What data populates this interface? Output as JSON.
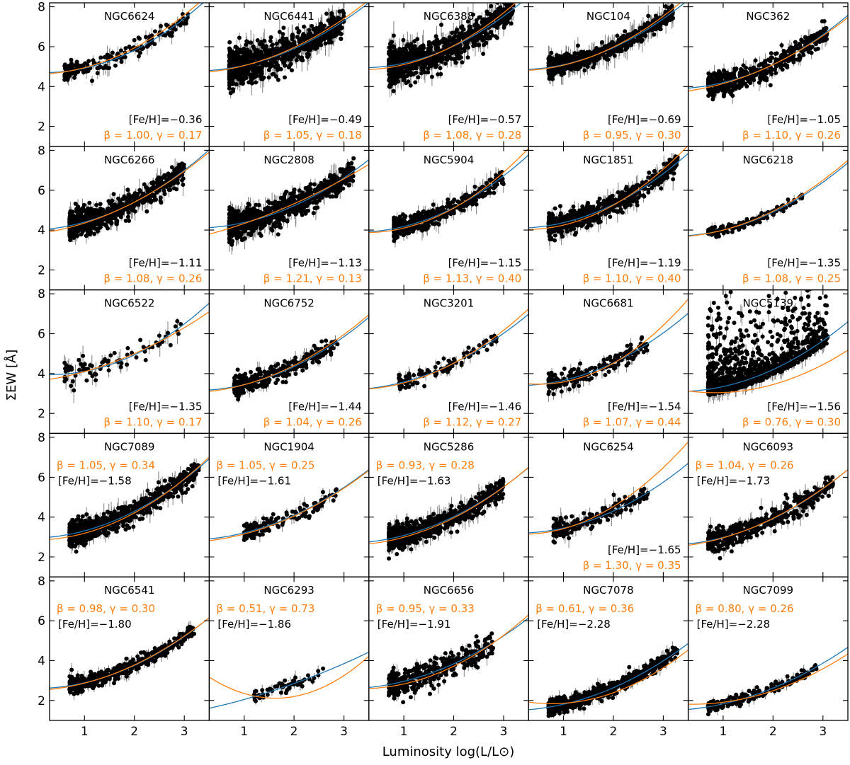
{
  "chart_data": {
    "type": "scatter",
    "xlabel": "Luminosity log(L/L⊙)",
    "ylabel": "ΣEW [Å]",
    "xlim": [
      0.3,
      3.5
    ],
    "ylim": [
      1.0,
      8.2
    ],
    "xticks": [
      1,
      2,
      3
    ],
    "yticks": [
      2,
      4,
      6,
      8
    ],
    "colors": {
      "points": "#000000",
      "errorbars": "#808080",
      "fit_blue": "#1f77b4",
      "fit_orange": "#ff7f0e"
    },
    "panels": [
      {
        "name": "NGC6624",
        "feh": "[Fe/H]=−0.36",
        "fit": "β = 1.00, γ = 0.17",
        "labels_top": false,
        "n": 180,
        "xr": [
          0.6,
          3.1
        ],
        "scatter": 0.25,
        "err": 0.35,
        "blue": [
          4.72,
          -0.15,
          0.35
        ],
        "orange": [
          4.62,
          0.0,
          0.33
        ]
      },
      {
        "name": "NGC6441",
        "feh": "[Fe/H]=−0.49",
        "fit": "β = 1.05, γ = 0.18",
        "labels_top": false,
        "n": 900,
        "xr": [
          0.7,
          3.0
        ],
        "scatter": 0.45,
        "err": 0.6,
        "blue": [
          4.78,
          0.0,
          0.28
        ],
        "orange": [
          4.68,
          0.1,
          0.27
        ]
      },
      {
        "name": "NGC6388",
        "feh": "[Fe/H]=−0.57",
        "fit": "β = 1.08, γ = 0.28",
        "labels_top": false,
        "n": 900,
        "xr": [
          0.7,
          3.2
        ],
        "scatter": 0.45,
        "err": 0.6,
        "blue": [
          4.95,
          -0.1,
          0.32
        ],
        "orange": [
          4.85,
          -0.1,
          0.35
        ]
      },
      {
        "name": "NGC104",
        "feh": "[Fe/H]=−0.69",
        "fit": "β = 0.95, γ = 0.30",
        "labels_top": false,
        "n": 700,
        "xr": [
          0.7,
          3.2
        ],
        "scatter": 0.25,
        "err": 0.5,
        "blue": [
          4.85,
          -0.05,
          0.3
        ],
        "orange": [
          4.8,
          -0.05,
          0.32
        ]
      },
      {
        "name": "NGC362",
        "feh": "[Fe/H]=−1.05",
        "fit": "β = 1.10, γ = 0.26",
        "labels_top": false,
        "n": 500,
        "xr": [
          0.7,
          3.1
        ],
        "scatter": 0.3,
        "err": 0.35,
        "blue": [
          3.9,
          0.0,
          0.3
        ],
        "orange": [
          3.7,
          0.2,
          0.25
        ]
      },
      {
        "name": "NGC6266",
        "feh": "[Fe/H]=−1.11",
        "fit": "β = 1.08, γ = 0.26",
        "labels_top": false,
        "n": 700,
        "xr": [
          0.7,
          3.0
        ],
        "scatter": 0.35,
        "err": 0.45,
        "blue": [
          4.0,
          0.1,
          0.3
        ],
        "orange": [
          3.8,
          0.3,
          0.25
        ]
      },
      {
        "name": "NGC2808",
        "feh": "[Fe/H]=−1.13",
        "fit": "β = 1.21, γ = 0.13",
        "labels_top": false,
        "n": 900,
        "xr": [
          0.7,
          3.2
        ],
        "scatter": 0.35,
        "err": 0.5,
        "blue": [
          4.1,
          0.0,
          0.28
        ],
        "orange": [
          3.6,
          0.6,
          0.13
        ]
      },
      {
        "name": "NGC5904",
        "feh": "[Fe/H]=−1.15",
        "fit": "β = 1.13, γ = 0.40",
        "labels_top": false,
        "n": 450,
        "xr": [
          0.8,
          3.0
        ],
        "scatter": 0.25,
        "err": 0.4,
        "blue": [
          3.9,
          -0.05,
          0.33
        ],
        "orange": [
          3.9,
          -0.2,
          0.4
        ]
      },
      {
        "name": "NGC1851",
        "feh": "[Fe/H]=−1.19",
        "fit": "β = 1.10, γ = 0.40",
        "labels_top": false,
        "n": 650,
        "xr": [
          0.7,
          3.3
        ],
        "scatter": 0.3,
        "err": 0.45,
        "blue": [
          4.1,
          -0.05,
          0.32
        ],
        "orange": [
          4.05,
          -0.2,
          0.4
        ]
      },
      {
        "name": "NGC6218",
        "feh": "[Fe/H]=−1.35",
        "fit": "β = 1.08, γ = 0.25",
        "labels_top": false,
        "n": 140,
        "xr": [
          0.7,
          2.6
        ],
        "scatter": 0.12,
        "err": 0.2,
        "blue": [
          3.7,
          0.0,
          0.3
        ],
        "orange": [
          3.65,
          0.05,
          0.3
        ]
      },
      {
        "name": "NGC6522",
        "feh": "[Fe/H]=−1.35",
        "fit": "β = 1.10, γ = 0.17",
        "labels_top": false,
        "n": 80,
        "xr": [
          0.6,
          3.0
        ],
        "scatter": 0.35,
        "err": 0.5,
        "blue": [
          4.0,
          -0.25,
          0.36
        ],
        "orange": [
          3.6,
          0.3,
          0.2
        ]
      },
      {
        "name": "NGC6752",
        "feh": "[Fe/H]=−1.44",
        "fit": "β = 1.04, γ = 0.26",
        "labels_top": false,
        "n": 350,
        "xr": [
          0.8,
          2.9
        ],
        "scatter": 0.25,
        "err": 0.35,
        "blue": [
          3.15,
          0.0,
          0.3
        ],
        "orange": [
          3.05,
          0.1,
          0.29
        ]
      },
      {
        "name": "NGC3201",
        "feh": "[Fe/H]=−1.46",
        "fit": "β = 1.12, γ = 0.27",
        "labels_top": false,
        "n": 110,
        "xr": [
          0.9,
          2.9
        ],
        "scatter": 0.2,
        "err": 0.3,
        "blue": [
          3.2,
          0.1,
          0.28
        ],
        "orange": [
          3.2,
          0.0,
          0.33
        ]
      },
      {
        "name": "NGC6681",
        "feh": "[Fe/H]=−1.54",
        "fit": "β = 1.07, γ = 0.44",
        "labels_top": false,
        "n": 200,
        "xr": [
          0.7,
          2.7
        ],
        "scatter": 0.25,
        "err": 0.35,
        "blue": [
          3.4,
          -0.05,
          0.31
        ],
        "orange": [
          3.6,
          -0.5,
          0.48
        ]
      },
      {
        "name": "NGC5139",
        "feh": "[Fe/H]=−1.56",
        "fit": "β = 0.76, γ = 0.30",
        "labels_top": false,
        "n": 1000,
        "xr": [
          0.7,
          3.1
        ],
        "scatter": 0.9,
        "err": 0.4,
        "blue": [
          3.1,
          -0.05,
          0.3
        ],
        "orange": [
          3.25,
          -0.5,
          0.3
        ]
      },
      {
        "name": "NGC7089",
        "feh": "[Fe/H]=−1.58",
        "fit": "β = 1.05, γ = 0.34",
        "labels_top": true,
        "n": 800,
        "xr": [
          0.7,
          3.3
        ],
        "scatter": 0.3,
        "err": 0.45,
        "blue": [
          2.95,
          0.05,
          0.31
        ],
        "orange": [
          2.85,
          0.0,
          0.34
        ]
      },
      {
        "name": "NGC1904",
        "feh": "[Fe/H]=−1.61",
        "fit": "β = 1.05, γ = 0.25",
        "labels_top": true,
        "n": 140,
        "xr": [
          1.0,
          2.9
        ],
        "scatter": 0.25,
        "err": 0.3,
        "blue": [
          2.85,
          0.1,
          0.26
        ],
        "orange": [
          2.75,
          0.15,
          0.25
        ]
      },
      {
        "name": "NGC5286",
        "feh": "[Fe/H]=−1.63",
        "fit": "β = 0.93, γ = 0.28",
        "labels_top": true,
        "n": 700,
        "xr": [
          0.7,
          3.0
        ],
        "scatter": 0.3,
        "err": 0.45,
        "blue": [
          2.7,
          0.1,
          0.28
        ],
        "orange": [
          2.6,
          0.1,
          0.29
        ]
      },
      {
        "name": "NGC6254",
        "feh": "[Fe/H]=−1.65",
        "fit": "β = 1.30, γ = 0.35",
        "labels_top": false,
        "n": 200,
        "xr": [
          0.8,
          2.7
        ],
        "scatter": 0.25,
        "err": 0.4,
        "blue": [
          3.2,
          -0.05,
          0.3
        ],
        "orange": [
          3.15,
          -0.15,
          0.42
        ]
      },
      {
        "name": "NGC6093",
        "feh": "[Fe/H]=−1.73",
        "fit": "β = 1.04, γ = 0.26",
        "labels_top": true,
        "n": 450,
        "xr": [
          0.7,
          3.2
        ],
        "scatter": 0.3,
        "err": 0.4,
        "blue": [
          2.6,
          0.1,
          0.28
        ],
        "orange": [
          2.5,
          0.2,
          0.26
        ]
      },
      {
        "name": "NGC6541",
        "feh": "[Fe/H]=−1.80",
        "fit": "β = 0.98, γ = 0.30",
        "labels_top": true,
        "n": 450,
        "xr": [
          0.7,
          3.2
        ],
        "scatter": 0.2,
        "err": 0.3,
        "blue": [
          2.6,
          0.0,
          0.29
        ],
        "orange": [
          2.5,
          0.1,
          0.27
        ]
      },
      {
        "name": "NGC6293",
        "feh": "[Fe/H]=−1.86",
        "fit": "β = 0.51, γ = 0.73",
        "labels_top": true,
        "n": 60,
        "xr": [
          1.2,
          2.6
        ],
        "scatter": 0.2,
        "err": 0.3,
        "blue": [
          1.45,
          0.5,
          0.1
        ],
        "orange": [
          3.7,
          -1.95,
          0.6
        ]
      },
      {
        "name": "NGC6656",
        "feh": "[Fe/H]=−1.91",
        "fit": "β = 0.95, γ = 0.33",
        "labels_top": true,
        "n": 400,
        "xr": [
          0.7,
          2.8
        ],
        "scatter": 0.35,
        "err": 0.35,
        "blue": [
          2.6,
          0.1,
          0.26
        ],
        "orange": [
          2.6,
          -0.1,
          0.33
        ]
      },
      {
        "name": "NGC7078",
        "feh": "[Fe/H]=−2.28",
        "fit": "β = 0.61, γ = 0.36",
        "labels_top": true,
        "n": 650,
        "xr": [
          0.7,
          3.3
        ],
        "scatter": 0.2,
        "err": 0.3,
        "blue": [
          1.5,
          0.05,
          0.26
        ],
        "orange": [
          2.05,
          -0.55,
          0.36
        ]
      },
      {
        "name": "NGC7099",
        "feh": "[Fe/H]=−2.28",
        "fit": "β = 0.80, γ = 0.26",
        "labels_top": true,
        "n": 200,
        "xr": [
          0.7,
          2.9
        ],
        "scatter": 0.15,
        "err": 0.25,
        "blue": [
          1.5,
          0.1,
          0.23
        ],
        "orange": [
          1.85,
          -0.2,
          0.26
        ]
      }
    ]
  }
}
